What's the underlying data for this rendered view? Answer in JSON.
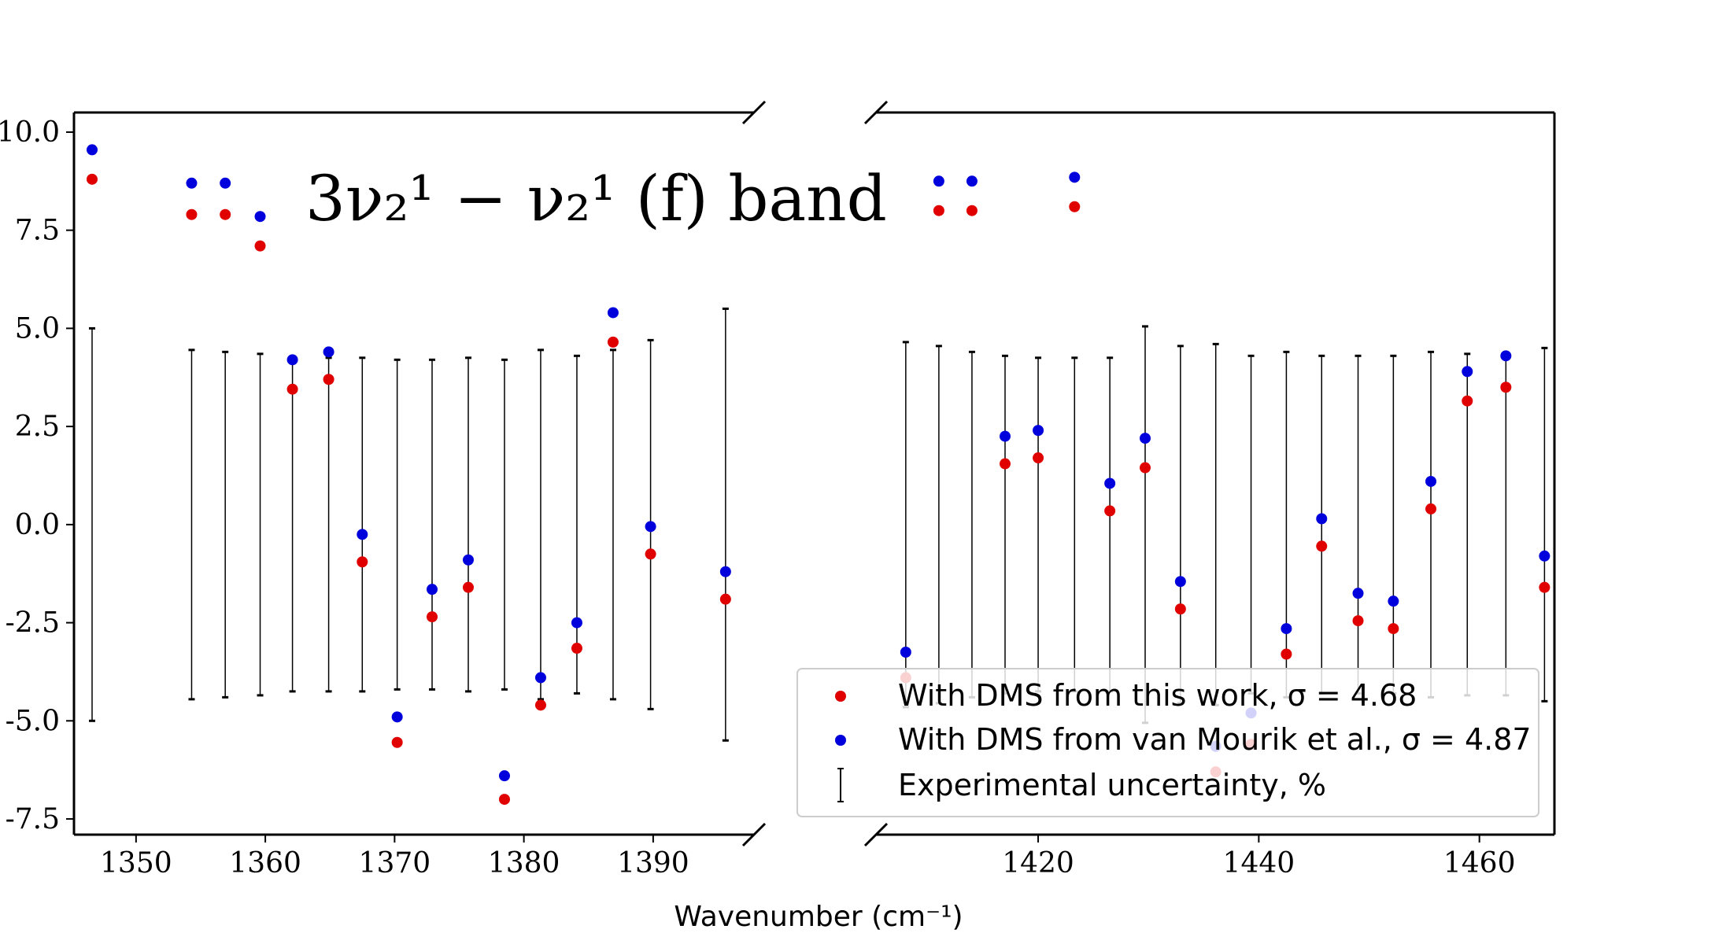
{
  "chart_data": {
    "type": "scatter",
    "title": "3ν₂¹ − ν₂¹ (f) band",
    "xlabel": "Wavenumber (cm⁻¹)",
    "ylabel": "",
    "ylim": [
      -7.9,
      10.5
    ],
    "yticks": [
      -7.5,
      -5.0,
      -2.5,
      0.0,
      2.5,
      5.0,
      7.5,
      10.0
    ],
    "ytick_labels": [
      "-7.5",
      "-5.0",
      "-2.5",
      "0.0",
      "2.5",
      "5.0",
      "7.5",
      "10.0"
    ],
    "panels": [
      {
        "name": "left",
        "xlim": [
          1345.2,
          1397.8
        ],
        "xticks": [
          1350,
          1360,
          1370,
          1380,
          1390
        ],
        "xtick_labels": [
          "1350",
          "1360",
          "1370",
          "1380",
          "1390"
        ]
      },
      {
        "name": "right",
        "xlim": [
          1405.3,
          1466.8
        ],
        "xticks": [
          1420,
          1440,
          1460
        ],
        "xtick_labels": [
          "1420",
          "1440",
          "1460"
        ]
      }
    ],
    "series": [
      {
        "name": "With DMS from this work, σ = 4.68",
        "color": "#e00000",
        "kind": "scatter",
        "points": [
          [
            1346.6,
            8.8
          ],
          [
            1354.3,
            7.9
          ],
          [
            1356.9,
            7.9
          ],
          [
            1359.6,
            7.1
          ],
          [
            1362.1,
            3.45
          ],
          [
            1364.9,
            3.7
          ],
          [
            1367.5,
            -0.95
          ],
          [
            1370.2,
            -5.55
          ],
          [
            1372.9,
            -2.35
          ],
          [
            1375.7,
            -1.6
          ],
          [
            1378.5,
            -7.0
          ],
          [
            1381.3,
            -4.6
          ],
          [
            1384.1,
            -3.15
          ],
          [
            1386.9,
            4.65
          ],
          [
            1389.8,
            -0.75
          ],
          [
            1395.6,
            -1.9
          ],
          [
            1408.0,
            -3.9
          ],
          [
            1411.0,
            8.0
          ],
          [
            1414.0,
            8.0
          ],
          [
            1417.0,
            1.55
          ],
          [
            1420.0,
            1.7
          ],
          [
            1423.3,
            8.1
          ],
          [
            1426.5,
            0.35
          ],
          [
            1429.7,
            1.45
          ],
          [
            1432.9,
            -2.15
          ],
          [
            1436.1,
            -6.3
          ],
          [
            1439.3,
            -5.6
          ],
          [
            1442.5,
            -3.3
          ],
          [
            1445.7,
            -0.55
          ],
          [
            1449.0,
            -2.45
          ],
          [
            1452.2,
            -2.65
          ],
          [
            1455.6,
            0.4
          ],
          [
            1458.9,
            3.15
          ],
          [
            1462.4,
            3.5
          ],
          [
            1465.9,
            -1.6
          ]
        ]
      },
      {
        "name": "With DMS from van Mourik et al., σ = 4.87",
        "color": "#0000dd",
        "kind": "scatter",
        "points": [
          [
            1346.6,
            9.55
          ],
          [
            1354.3,
            8.7
          ],
          [
            1356.9,
            8.7
          ],
          [
            1359.6,
            7.85
          ],
          [
            1362.1,
            4.2
          ],
          [
            1364.9,
            4.4
          ],
          [
            1367.5,
            -0.25
          ],
          [
            1370.2,
            -4.9
          ],
          [
            1372.9,
            -1.65
          ],
          [
            1375.7,
            -0.9
          ],
          [
            1378.5,
            -6.4
          ],
          [
            1381.3,
            -3.9
          ],
          [
            1384.1,
            -2.5
          ],
          [
            1386.9,
            5.4
          ],
          [
            1389.8,
            -0.05
          ],
          [
            1395.6,
            -1.2
          ],
          [
            1408.0,
            -3.25
          ],
          [
            1411.0,
            8.75
          ],
          [
            1414.0,
            8.75
          ],
          [
            1417.0,
            2.25
          ],
          [
            1420.0,
            2.4
          ],
          [
            1423.3,
            8.85
          ],
          [
            1426.5,
            1.05
          ],
          [
            1429.7,
            2.2
          ],
          [
            1432.9,
            -1.45
          ],
          [
            1436.1,
            -5.65
          ],
          [
            1439.3,
            -4.8
          ],
          [
            1442.5,
            -2.65
          ],
          [
            1445.7,
            0.15
          ],
          [
            1449.0,
            -1.75
          ],
          [
            1452.2,
            -1.95
          ],
          [
            1455.6,
            1.1
          ],
          [
            1458.9,
            3.9
          ],
          [
            1462.4,
            4.3
          ],
          [
            1465.9,
            -0.8
          ]
        ]
      },
      {
        "name": "Experimental uncertainty, %",
        "color": "#000000",
        "kind": "errorbar",
        "points": [
          [
            1346.6,
            5.0
          ],
          [
            1354.3,
            4.45
          ],
          [
            1356.9,
            4.4
          ],
          [
            1359.6,
            4.35
          ],
          [
            1362.1,
            4.25
          ],
          [
            1364.9,
            4.25
          ],
          [
            1367.5,
            4.25
          ],
          [
            1370.2,
            4.2
          ],
          [
            1372.9,
            4.2
          ],
          [
            1375.7,
            4.25
          ],
          [
            1378.5,
            4.2
          ],
          [
            1381.3,
            4.45
          ],
          [
            1384.1,
            4.3
          ],
          [
            1386.9,
            4.45
          ],
          [
            1389.8,
            4.7
          ],
          [
            1395.6,
            5.5
          ],
          [
            1408.0,
            4.65
          ],
          [
            1411.0,
            4.55
          ],
          [
            1414.0,
            4.4
          ],
          [
            1417.0,
            4.3
          ],
          [
            1420.0,
            4.25
          ],
          [
            1423.3,
            4.25
          ],
          [
            1426.5,
            4.25
          ],
          [
            1429.7,
            5.05
          ],
          [
            1432.9,
            4.55
          ],
          [
            1436.1,
            4.6
          ],
          [
            1439.3,
            4.3
          ],
          [
            1442.5,
            4.4
          ],
          [
            1445.7,
            4.3
          ],
          [
            1449.0,
            4.3
          ],
          [
            1452.2,
            4.3
          ],
          [
            1455.6,
            4.4
          ],
          [
            1458.9,
            4.35
          ],
          [
            1462.4,
            4.35
          ],
          [
            1465.9,
            4.5
          ]
        ]
      }
    ],
    "legend": {
      "position": "lower-right",
      "entries": [
        {
          "label": "With DMS from this work, σ = 4.68",
          "marker": "dot",
          "color": "#e00000"
        },
        {
          "label": "With DMS from van Mourik et al., σ = 4.87",
          "marker": "dot",
          "color": "#0000dd"
        },
        {
          "label": "Experimental uncertainty, %",
          "marker": "errorbar",
          "color": "#000000"
        }
      ]
    }
  }
}
